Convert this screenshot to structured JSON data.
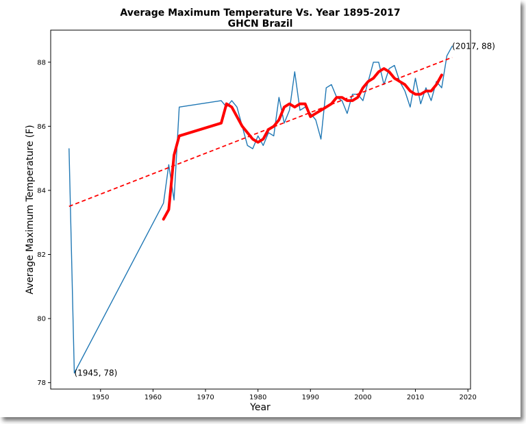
{
  "chart_data": {
    "type": "line",
    "title": "Average Maximum Temperature Vs. Year 1895-2017",
    "subtitle": "GHCN Brazil",
    "xlabel": "Year",
    "ylabel": "Average Maximum Temperature (F)",
    "xlim": [
      1940.5,
      2020.5
    ],
    "ylim": [
      77.8,
      89.0
    ],
    "xticks": [
      1950,
      1960,
      1970,
      1980,
      1990,
      2000,
      2010,
      2020
    ],
    "yticks": [
      78,
      80,
      82,
      84,
      86,
      88
    ],
    "grid": false,
    "series": [
      {
        "role": "annual",
        "color": "#1f77b4",
        "x": [
          1944,
          1945,
          1962,
          1963,
          1964,
          1965,
          1973,
          1974,
          1975,
          1976,
          1977,
          1978,
          1979,
          1980,
          1981,
          1982,
          1983,
          1984,
          1985,
          1986,
          1987,
          1988,
          1989,
          1990,
          1991,
          1992,
          1993,
          1994,
          1995,
          1996,
          1997,
          1998,
          1999,
          2000,
          2001,
          2002,
          2003,
          2004,
          2005,
          2006,
          2007,
          2008,
          2009,
          2010,
          2011,
          2012,
          2013,
          2014,
          2015,
          2016,
          2017
        ],
        "y": [
          85.3,
          78.3,
          83.6,
          84.8,
          83.7,
          86.6,
          86.8,
          86.6,
          86.8,
          86.6,
          86.0,
          85.4,
          85.3,
          85.7,
          85.4,
          85.8,
          85.7,
          86.9,
          86.1,
          86.5,
          87.7,
          86.5,
          86.6,
          86.4,
          86.2,
          85.6,
          87.2,
          87.3,
          86.9,
          86.8,
          86.4,
          87.0,
          87.0,
          86.8,
          87.4,
          88.0,
          88.0,
          87.3,
          87.8,
          87.9,
          87.4,
          87.1,
          86.6,
          87.5,
          86.7,
          87.2,
          86.8,
          87.4,
          87.2,
          88.2,
          88.5
        ]
      },
      {
        "role": "moving-average",
        "color": "#ff0000",
        "x": [
          1962,
          1963,
          1964,
          1965,
          1973,
          1974,
          1975,
          1976,
          1977,
          1978,
          1979,
          1980,
          1981,
          1982,
          1983,
          1984,
          1985,
          1986,
          1987,
          1988,
          1989,
          1990,
          1991,
          1992,
          1993,
          1994,
          1995,
          1996,
          1997,
          1998,
          1999,
          2000,
          2001,
          2002,
          2003,
          2004,
          2005,
          2006,
          2007,
          2008,
          2009,
          2010,
          2011,
          2012,
          2013,
          2014,
          2015
        ],
        "y": [
          83.1,
          83.4,
          85.1,
          85.7,
          86.1,
          86.7,
          86.6,
          86.3,
          86.0,
          85.8,
          85.6,
          85.5,
          85.6,
          85.9,
          86.0,
          86.2,
          86.6,
          86.7,
          86.6,
          86.7,
          86.7,
          86.3,
          86.4,
          86.5,
          86.6,
          86.7,
          86.9,
          86.9,
          86.8,
          86.8,
          86.9,
          87.2,
          87.4,
          87.5,
          87.7,
          87.8,
          87.7,
          87.5,
          87.4,
          87.3,
          87.1,
          87.0,
          87.0,
          87.1,
          87.1,
          87.3,
          87.6
        ]
      },
      {
        "role": "trend",
        "color": "#ff0000",
        "dashed": true,
        "x": [
          1944,
          2017
        ],
        "y": [
          83.5,
          88.15
        ]
      }
    ],
    "annotations": [
      {
        "text": "(1945, 78)",
        "x": 1945,
        "y": 78.3
      },
      {
        "text": "(2017, 88)",
        "x": 2017,
        "y": 88.5
      }
    ]
  }
}
